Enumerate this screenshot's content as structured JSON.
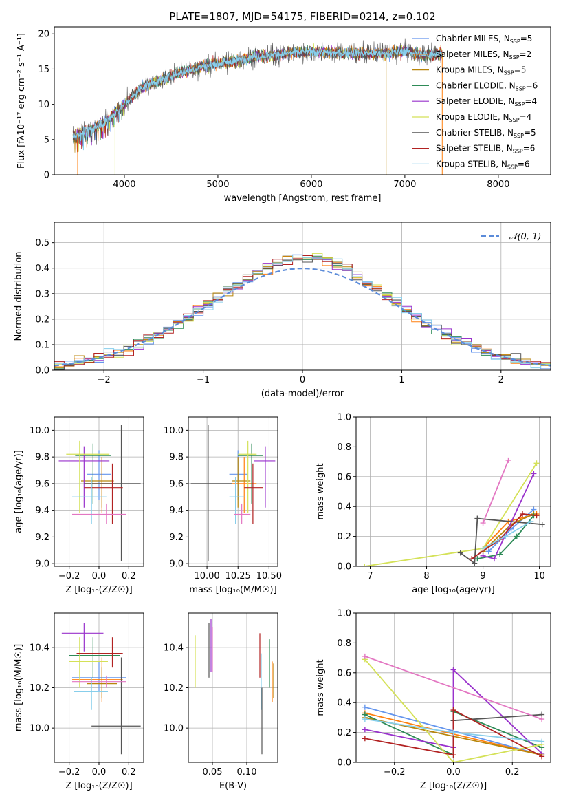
{
  "figure": {
    "title": "PLATE=1807, MJD=54175, FIBERID=0214, z=0.102"
  },
  "colors": {
    "Chabrier MILES": "#6495ed",
    "Salpeter MILES": "#ff7f0e",
    "Kroupa MILES": "#b8860b",
    "Chabrier ELODIE": "#2e8b57",
    "Salpeter ELODIE": "#9932cc",
    "Kroupa ELODIE": "#d4e157",
    "Chabrier STELIB": "#555555",
    "Salpeter STELIB": "#b22222",
    "Kroupa STELIB": "#87ceeb",
    "hotpink": "#e377c2",
    "normal": "#5b8bd9"
  },
  "chart_data": [
    {
      "type": "line",
      "panel": "spectrum",
      "title": "PLATE=1807, MJD=54175, FIBERID=0214, z=0.102",
      "xlabel": "wavelength [Angstrom, rest frame]",
      "ylabel": "Flux [fλ10⁻¹⁷ erg cm⁻² s⁻¹ A⁻¹]",
      "xlim": [
        3250,
        8560
      ],
      "ylim": [
        0,
        21
      ],
      "xticks": [
        "4000",
        "5000",
        "6000",
        "7000",
        "8000"
      ],
      "yticks": [
        "0",
        "5",
        "10",
        "15",
        "20"
      ],
      "x": [
        3450,
        3600,
        3800,
        4000,
        4200,
        4400,
        4600,
        4800,
        5000,
        5200,
        5400,
        5600,
        5800,
        6000,
        6200,
        6400,
        6600,
        6800,
        7000,
        7200,
        7400
      ],
      "y": [
        5.5,
        6.2,
        7.5,
        10.0,
        12.5,
        13.5,
        14.5,
        15.2,
        15.8,
        16.2,
        16.8,
        17.0,
        17.3,
        17.5,
        17.3,
        17.3,
        17.2,
        17.2,
        17.5,
        17.0,
        17.3
      ],
      "legend": [
        {
          "label": "Chabrier MILES, N",
          "sub": "SSP",
          "suffix": "=5",
          "color_key": "Chabrier MILES"
        },
        {
          "label": "Salpeter MILES, N",
          "sub": "SSP",
          "suffix": "=2",
          "color_key": "Salpeter MILES"
        },
        {
          "label": "Kroupa MILES, N",
          "sub": "SSP",
          "suffix": "=5",
          "color_key": "Kroupa MILES"
        },
        {
          "label": "Chabrier ELODIE, N",
          "sub": "SSP",
          "suffix": "=6",
          "color_key": "Chabrier ELODIE"
        },
        {
          "label": "Salpeter ELODIE, N",
          "sub": "SSP",
          "suffix": "=4",
          "color_key": "Salpeter ELODIE"
        },
        {
          "label": "Kroupa ELODIE, N",
          "sub": "SSP",
          "suffix": "=4",
          "color_key": "Kroupa ELODIE"
        },
        {
          "label": "Chabrier STELIB, N",
          "sub": "SSP",
          "suffix": "=5",
          "color_key": "Chabrier STELIB"
        },
        {
          "label": "Salpeter STELIB, N",
          "sub": "SSP",
          "suffix": "=6",
          "color_key": "Salpeter STELIB"
        },
        {
          "label": "Kroupa STELIB, N",
          "sub": "SSP",
          "suffix": "=6",
          "color_key": "Kroupa STELIB"
        }
      ],
      "legend_loc": "upper right"
    },
    {
      "type": "histogram",
      "panel": "residuals",
      "xlabel": "(data-model)/error",
      "ylabel": "Normed distribution",
      "xlim": [
        -2.5,
        2.5
      ],
      "ylim": [
        0,
        0.58
      ],
      "xticks": [
        "−2",
        "−1",
        "0",
        "1",
        "2"
      ],
      "yticks": [
        "0.0",
        "0.1",
        "0.2",
        "0.3",
        "0.4",
        "0.5"
      ],
      "grid": true,
      "legend": [
        {
          "label": "𝒩(0, 1)",
          "color_key": "normal"
        }
      ],
      "legend_loc": "upper right"
    },
    {
      "type": "errorbar",
      "panel": "age-vs-Z",
      "xlabel": "Z [log₁₀(Z/Z☉)]",
      "ylabel": "age  [log₁₀(age/yr)]",
      "xlim": [
        -0.3,
        0.3
      ],
      "ylim": [
        8.98,
        10.1
      ],
      "xticks": [
        "−0.2",
        "0.0",
        "0.2"
      ],
      "yticks": [
        "9.0",
        "9.2",
        "9.4",
        "9.6",
        "9.8",
        "10.0"
      ],
      "grid": true,
      "points": [
        {
          "c": "Chabrier MILES",
          "x": 0.0,
          "xl": -0.08,
          "xh": 0.08,
          "y": 9.67,
          "yl": 9.48,
          "yh": 9.85
        },
        {
          "c": "Salpeter MILES",
          "x": 0.02,
          "xl": -0.1,
          "xh": 0.1,
          "y": 9.6,
          "yl": 9.38,
          "yh": 9.8
        },
        {
          "c": "Kroupa MILES",
          "x": 0.02,
          "xl": -0.12,
          "xh": 0.1,
          "y": 9.62,
          "yl": 9.42,
          "yh": 9.8
        },
        {
          "c": "Chabrier ELODIE",
          "x": -0.04,
          "xl": -0.16,
          "xh": 0.08,
          "y": 9.81,
          "yl": 9.45,
          "yh": 9.9
        },
        {
          "c": "Salpeter ELODIE",
          "x": -0.1,
          "xl": -0.27,
          "xh": 0.07,
          "y": 9.77,
          "yl": 9.42,
          "yh": 9.88
        },
        {
          "c": "Kroupa ELODIE",
          "x": -0.13,
          "xl": -0.22,
          "xh": 0.07,
          "y": 9.82,
          "yl": 9.38,
          "yh": 9.92
        },
        {
          "c": "Chabrier STELIB",
          "x": 0.15,
          "xl": -0.1,
          "xh": 0.28,
          "y": 9.6,
          "yl": 9.02,
          "yh": 10.04
        },
        {
          "c": "Salpeter STELIB",
          "x": 0.09,
          "xl": -0.1,
          "xh": 0.16,
          "y": 9.57,
          "yl": 9.3,
          "yh": 9.75
        },
        {
          "c": "Kroupa STELIB",
          "x": -0.05,
          "xl": -0.18,
          "xh": 0.05,
          "y": 9.5,
          "yl": 9.3,
          "yh": 9.65
        },
        {
          "c": "hotpink",
          "x": 0.05,
          "xl": -0.18,
          "xh": 0.18,
          "y": 9.37,
          "yl": 9.3,
          "yh": 9.45
        }
      ]
    },
    {
      "type": "errorbar",
      "panel": "age-vs-mass",
      "xlabel": "mass [log₁₀(M/M☉)]",
      "xlim": [
        9.85,
        10.57
      ],
      "ylim": [
        8.98,
        10.1
      ],
      "xticks": [
        "10.00",
        "10.25",
        "10.50"
      ],
      "yticks": [
        "9.0",
        "9.2",
        "9.4",
        "9.6",
        "9.8",
        "10.0"
      ],
      "grid": true,
      "points": [
        {
          "c": "Chabrier MILES",
          "x": 10.25,
          "xl": 10.18,
          "xh": 10.33,
          "y": 9.67,
          "yl": 9.48,
          "yh": 9.85
        },
        {
          "c": "Salpeter MILES",
          "x": 10.3,
          "xl": 10.2,
          "xh": 10.4,
          "y": 9.6,
          "yl": 9.38,
          "yh": 9.8
        },
        {
          "c": "Kroupa MILES",
          "x": 10.25,
          "xl": 10.2,
          "xh": 10.35,
          "y": 9.62,
          "yl": 9.42,
          "yh": 9.8
        },
        {
          "c": "Chabrier ELODIE",
          "x": 10.36,
          "xl": 10.25,
          "xh": 10.45,
          "y": 9.81,
          "yl": 9.45,
          "yh": 9.9
        },
        {
          "c": "Salpeter ELODIE",
          "x": 10.47,
          "xl": 10.38,
          "xh": 10.55,
          "y": 9.77,
          "yl": 9.42,
          "yh": 9.88
        },
        {
          "c": "Kroupa ELODIE",
          "x": 10.33,
          "xl": 10.25,
          "xh": 10.4,
          "y": 9.82,
          "yl": 9.38,
          "yh": 9.92
        },
        {
          "c": "Chabrier STELIB",
          "x": 10.01,
          "xl": 9.87,
          "xh": 10.2,
          "y": 9.6,
          "yl": 9.02,
          "yh": 10.04
        },
        {
          "c": "Salpeter STELIB",
          "x": 10.37,
          "xl": 10.3,
          "xh": 10.45,
          "y": 9.57,
          "yl": 9.3,
          "yh": 9.75
        },
        {
          "c": "Kroupa STELIB",
          "x": 10.23,
          "xl": 10.18,
          "xh": 10.3,
          "y": 9.5,
          "yl": 9.3,
          "yh": 9.65
        },
        {
          "c": "hotpink",
          "x": 10.28,
          "xl": 10.22,
          "xh": 10.35,
          "y": 9.37,
          "yl": 9.3,
          "yh": 9.45
        }
      ]
    },
    {
      "type": "line",
      "panel": "mass-weight-vs-age",
      "xlabel": "age  [log₁₀(age/yr)]",
      "ylabel": "mass weight",
      "xlim": [
        6.75,
        10.2
      ],
      "ylim": [
        0,
        1
      ],
      "xticks": [
        "7",
        "8",
        "9",
        "10"
      ],
      "yticks": [
        "0.0",
        "0.2",
        "0.4",
        "0.6",
        "0.8",
        "1.0"
      ],
      "grid": true,
      "series": [
        {
          "c": "Chabrier MILES",
          "x": [
            9.1,
            9.5,
            9.9
          ],
          "y": [
            0.1,
            0.25,
            0.38
          ]
        },
        {
          "c": "Salpeter MILES",
          "x": [
            9.0,
            9.45,
            9.95
          ],
          "y": [
            0.12,
            0.3,
            0.35
          ]
        },
        {
          "c": "Kroupa MILES",
          "x": [
            9.0,
            9.5,
            9.9
          ],
          "y": [
            0.1,
            0.28,
            0.35
          ]
        },
        {
          "c": "Chabrier ELODIE",
          "x": [
            8.9,
            9.3,
            9.6,
            9.9
          ],
          "y": [
            0.05,
            0.08,
            0.2,
            0.34
          ]
        },
        {
          "c": "Salpeter ELODIE",
          "x": [
            9.0,
            9.2,
            9.9
          ],
          "y": [
            0.07,
            0.05,
            0.62
          ]
        },
        {
          "c": "Kroupa ELODIE",
          "x": [
            6.9,
            9.0,
            9.95
          ],
          "y": [
            0.0,
            0.12,
            0.69
          ]
        },
        {
          "c": "Chabrier STELIB",
          "x": [
            8.6,
            8.85,
            8.9,
            10.05
          ],
          "y": [
            0.09,
            0.02,
            0.32,
            0.28
          ]
        },
        {
          "c": "Salpeter STELIB",
          "x": [
            8.8,
            9.3,
            9.7,
            9.95
          ],
          "y": [
            0.05,
            0.18,
            0.35,
            0.34
          ]
        },
        {
          "c": "Kroupa STELIB",
          "x": [
            9.0,
            9.4,
            9.85
          ],
          "y": [
            0.12,
            0.2,
            0.3
          ]
        },
        {
          "c": "hotpink",
          "x": [
            9.0,
            9.45
          ],
          "y": [
            0.29,
            0.71
          ]
        }
      ]
    },
    {
      "type": "errorbar",
      "panel": "mass-vs-Z",
      "xlabel": "Z [log₁₀(Z/Z☉)]",
      "ylabel": "mass [log₁₀(M/M☉)]",
      "xlim": [
        -0.3,
        0.3
      ],
      "ylim": [
        9.83,
        10.57
      ],
      "xticks": [
        "−0.2",
        "0.0",
        "0.2"
      ],
      "yticks": [
        "10.0",
        "10.2",
        "10.4"
      ],
      "grid": true,
      "points": [
        {
          "c": "Chabrier MILES",
          "x": 0.0,
          "xl": -0.18,
          "xh": 0.18,
          "y": 10.25,
          "yl": 10.18,
          "yh": 10.33
        },
        {
          "c": "Salpeter MILES",
          "x": 0.02,
          "xl": -0.18,
          "xh": 0.16,
          "y": 10.24,
          "yl": 10.13,
          "yh": 10.35
        },
        {
          "c": "Kroupa MILES",
          "x": 0.02,
          "xl": -0.08,
          "xh": 0.12,
          "y": 10.22,
          "yl": 10.15,
          "yh": 10.3
        },
        {
          "c": "Chabrier ELODIE",
          "x": -0.04,
          "xl": -0.2,
          "xh": 0.14,
          "y": 10.36,
          "yl": 10.25,
          "yh": 10.45
        },
        {
          "c": "Salpeter ELODIE",
          "x": -0.1,
          "xl": -0.25,
          "xh": 0.03,
          "y": 10.47,
          "yl": 10.38,
          "yh": 10.52
        },
        {
          "c": "Kroupa ELODIE",
          "x": -0.13,
          "xl": -0.2,
          "xh": 0.06,
          "y": 10.33,
          "yl": 10.2,
          "yh": 10.45
        },
        {
          "c": "Chabrier STELIB",
          "x": 0.15,
          "xl": -0.05,
          "xh": 0.28,
          "y": 10.01,
          "yl": 9.87,
          "yh": 10.35
        },
        {
          "c": "Salpeter STELIB",
          "x": 0.09,
          "xl": -0.15,
          "xh": 0.16,
          "y": 10.37,
          "yl": 10.3,
          "yh": 10.45
        },
        {
          "c": "Kroupa STELIB",
          "x": -0.05,
          "xl": -0.17,
          "xh": 0.06,
          "y": 10.18,
          "yl": 10.09,
          "yh": 10.25
        },
        {
          "c": "hotpink",
          "x": 0.05,
          "xl": -0.18,
          "xh": 0.18,
          "y": 10.23,
          "yl": 10.2,
          "yh": 10.26
        }
      ]
    },
    {
      "type": "errorbar",
      "panel": "mass-vs-EBV",
      "xlabel": "E(B-V)",
      "xlim": [
        0.015,
        0.145
      ],
      "ylim": [
        9.83,
        10.57
      ],
      "xticks": [
        "0.05",
        "0.10"
      ],
      "yticks": [
        "10.0",
        "10.2",
        "10.4"
      ],
      "grid": true,
      "points": [
        {
          "c": "Kroupa ELODIE",
          "x": 0.025,
          "yl": 10.2,
          "yh": 10.46
        },
        {
          "c": "Chabrier STELIB",
          "x": 0.045,
          "yl": 10.25,
          "yh": 10.52
        },
        {
          "c": "Salpeter ELODIE",
          "x": 0.048,
          "yl": 10.28,
          "yh": 10.54
        },
        {
          "c": "hotpink",
          "x": 0.05,
          "yl": 10.28,
          "yh": 10.5
        },
        {
          "c": "Salpeter STELIB",
          "x": 0.119,
          "yl": 10.25,
          "yh": 10.47
        },
        {
          "c": "Kroupa STELIB",
          "x": 0.121,
          "yl": 10.09,
          "yh": 10.37
        },
        {
          "c": "Chabrier STELIB",
          "x": 0.122,
          "yl": 9.87,
          "yh": 10.2
        },
        {
          "c": "Chabrier ELODIE",
          "x": 0.133,
          "yl": 10.2,
          "yh": 10.44
        },
        {
          "c": "Salpeter MILES",
          "x": 0.137,
          "yl": 10.13,
          "yh": 10.33
        },
        {
          "c": "Kroupa MILES",
          "x": 0.139,
          "yl": 10.15,
          "yh": 10.32
        }
      ]
    },
    {
      "type": "line",
      "panel": "mass-weight-vs-Z",
      "xlabel": "Z [log₁₀(Z/Z☉)]",
      "ylabel": "mass weight",
      "xlim": [
        -0.33,
        0.33
      ],
      "ylim": [
        0,
        1
      ],
      "xticks": [
        "−0.2",
        "0.0",
        "0.2"
      ],
      "yticks": [
        "0.0",
        "0.2",
        "0.4",
        "0.6",
        "0.8",
        "1.0"
      ],
      "grid": true,
      "series": [
        {
          "c": "Chabrier MILES",
          "x": [
            -0.3,
            0.3
          ],
          "y": [
            0.37,
            0.05
          ]
        },
        {
          "c": "Salpeter MILES",
          "x": [
            -0.3,
            0.3
          ],
          "y": [
            0.33,
            0.05
          ]
        },
        {
          "c": "Kroupa MILES",
          "x": [
            -0.3,
            0.3
          ],
          "y": [
            0.3,
            0.05
          ]
        },
        {
          "c": "Chabrier ELODIE",
          "x": [
            -0.3,
            0.0,
            0.0,
            0.3
          ],
          "y": [
            0.32,
            0.05,
            0.34,
            0.1
          ]
        },
        {
          "c": "Salpeter ELODIE",
          "x": [
            -0.3,
            0.0,
            0.0,
            0.3
          ],
          "y": [
            0.22,
            0.1,
            0.62,
            0.06
          ]
        },
        {
          "c": "Kroupa ELODIE",
          "x": [
            -0.3,
            0.0,
            0.3
          ],
          "y": [
            0.69,
            0.0,
            0.12
          ]
        },
        {
          "c": "Chabrier STELIB",
          "x": [
            0.0,
            0.3
          ],
          "y": [
            0.28,
            0.32
          ]
        },
        {
          "c": "Salpeter STELIB",
          "x": [
            -0.3,
            0.0,
            0.0,
            0.3
          ],
          "y": [
            0.16,
            0.05,
            0.35,
            0.04
          ]
        },
        {
          "c": "Kroupa STELIB",
          "x": [
            -0.3,
            0.0,
            0.3
          ],
          "y": [
            0.29,
            0.2,
            0.14
          ]
        },
        {
          "c": "hotpink",
          "x": [
            -0.3,
            0.3
          ],
          "y": [
            0.71,
            0.29
          ]
        }
      ]
    }
  ]
}
